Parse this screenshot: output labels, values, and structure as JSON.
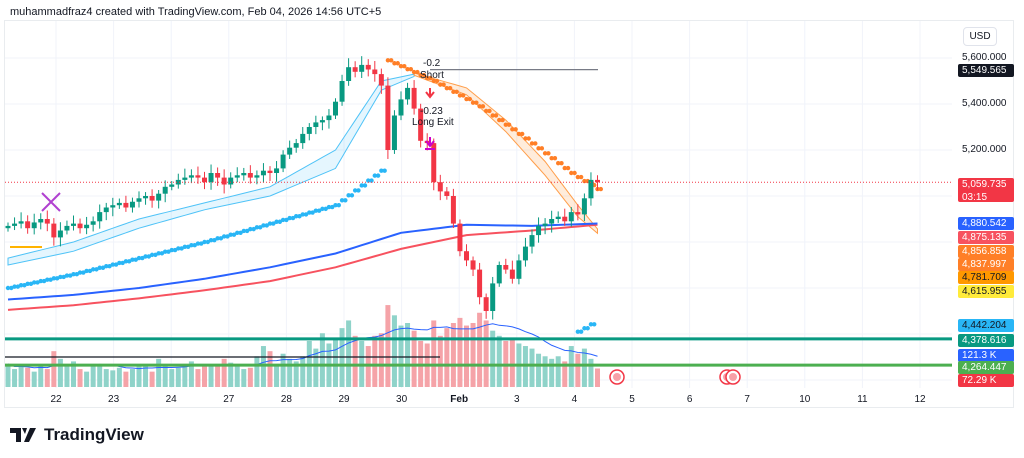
{
  "header": {
    "attribution": "muhammadfraz4 created with TradingView.com, Feb 04, 2026 14:56 UTC+5"
  },
  "footer": {
    "brand": "TradingView"
  },
  "colors": {
    "up": "#089981",
    "down": "#f23645",
    "vol_up": "#8fd3c9",
    "vol_down": "#f5a3a8",
    "ma_blue": "#2962ff",
    "ma_red": "#f7525f",
    "psar_blue": "#29b6f6",
    "psar_orange": "#ff7f27",
    "band_cyan": "#4fc3f7",
    "band_orange": "#ff9e4a",
    "signal_magenta": "#cc00cc"
  },
  "annotations": {
    "short_value": "-0.2",
    "short_label": "Short",
    "exit_value": "-0.23",
    "exit_label": "Long Exit"
  },
  "axis": {
    "currency": "USD",
    "ticks": [
      "5,600.000",
      "5,400.000",
      "5,200.000"
    ],
    "time_remaining": "03:15"
  },
  "price_tags": [
    {
      "label": "5,549.565",
      "bg": "#131722",
      "fg": "#ffffff"
    },
    {
      "label": "5,059.735",
      "bg": "#f23645",
      "fg": "#ffffff"
    },
    {
      "label": "4,880.542",
      "bg": "#2962ff",
      "fg": "#ffffff"
    },
    {
      "label": "4,875.135",
      "bg": "#f7525f",
      "fg": "#ffffff"
    },
    {
      "label": "4,856.858",
      "bg": "#ff7f27",
      "fg": "#ffffff"
    },
    {
      "label": "4,837.997",
      "bg": "#ff7f27",
      "fg": "#ffffff"
    },
    {
      "label": "4,781.709",
      "bg": "#ff9800",
      "fg": "#131722"
    },
    {
      "label": "4,615.955",
      "bg": "#ffeb3b",
      "fg": "#131722"
    },
    {
      "label": "4,442.204",
      "bg": "#29b6f6",
      "fg": "#131722"
    },
    {
      "label": "4,378.616",
      "bg": "#089981",
      "fg": "#ffffff"
    },
    {
      "label": "121.3 K",
      "bg": "#2962ff",
      "fg": "#ffffff"
    },
    {
      "label": "4,264.447",
      "bg": "#4caf50",
      "fg": "#ffffff"
    },
    {
      "label": "72.29 K",
      "bg": "#f23645",
      "fg": "#ffffff"
    }
  ],
  "chart_data": {
    "type": "candlestick",
    "title": "",
    "x_tick_labels": [
      "22",
      "23",
      "24",
      "27",
      "28",
      "29",
      "30",
      "Feb",
      "3",
      "4",
      "5",
      "6",
      "7",
      "10",
      "11",
      "12"
    ],
    "y_ticks": [
      5600,
      5400,
      5200
    ],
    "last_price": 5059.735,
    "closes": [
      4870,
      4880,
      4890,
      4860,
      4885,
      4900,
      4880,
      4820,
      4850,
      4870,
      4880,
      4860,
      4875,
      4890,
      4930,
      4950,
      4960,
      4970,
      4950,
      4975,
      4990,
      5000,
      4980,
      5010,
      5040,
      5050,
      5070,
      5080,
      5090,
      5080,
      5060,
      5100,
      5080,
      5050,
      5080,
      5090,
      5100,
      5080,
      5090,
      5110,
      5100,
      5120,
      5180,
      5210,
      5230,
      5270,
      5300,
      5320,
      5330,
      5350,
      5410,
      5500,
      5560,
      5540,
      5570,
      5550,
      5530,
      5480,
      5200,
      5350,
      5420,
      5470,
      5380,
      5240,
      5230,
      5060,
      5020,
      5000,
      4880,
      4760,
      4720,
      4680,
      4560,
      4500,
      4620,
      4700,
      4680,
      4640,
      4720,
      4780,
      4830,
      4870,
      4880,
      4900,
      4910,
      4890,
      4930,
      4920,
      4990,
      5070,
      5059.735
    ],
    "volume_k": [
      90,
      70,
      80,
      75,
      60,
      85,
      70,
      140,
      110,
      80,
      100,
      70,
      60,
      90,
      80,
      70,
      65,
      75,
      60,
      70,
      80,
      90,
      60,
      110,
      80,
      70,
      75,
      90,
      100,
      70,
      80,
      85,
      90,
      110,
      95,
      80,
      70,
      75,
      120,
      160,
      140,
      90,
      130,
      110,
      100,
      120,
      180,
      150,
      210,
      170,
      190,
      230,
      260,
      200,
      180,
      160,
      200,
      210,
      320,
      280,
      240,
      250,
      220,
      180,
      170,
      260,
      200,
      230,
      250,
      270,
      240,
      250,
      290,
      260,
      220,
      200,
      180,
      190,
      170,
      160,
      150,
      130,
      120,
      110,
      120,
      100,
      160,
      130,
      150,
      110,
      72.29
    ],
    "indicators": {
      "ma_blue": {
        "at": [
          0,
          10,
          20,
          30,
          40,
          50,
          60,
          70,
          80,
          90
        ],
        "values": [
          4550,
          4570,
          4600,
          4640,
          4690,
          4750,
          4840,
          4875,
          4870,
          4880.542
        ]
      },
      "ma_red": {
        "at": [
          0,
          10,
          20,
          30,
          40,
          50,
          60,
          70,
          80,
          90
        ],
        "values": [
          4505,
          4525,
          4555,
          4590,
          4630,
          4690,
          4770,
          4830,
          4850,
          4875.135
        ]
      },
      "psar_blue": {
        "at": [
          0,
          10,
          20,
          30,
          40,
          50,
          57
        ],
        "values": [
          4600,
          4660,
          4730,
          4800,
          4880,
          4960,
          5110
        ]
      },
      "psar_blue_recent": {
        "at": [
          87,
          88,
          89
        ],
        "values": [
          4410,
          4425,
          4442.204
        ]
      },
      "psar_orange": {
        "at": [
          58,
          65,
          72,
          79,
          86,
          90
        ],
        "values": [
          5590,
          5500,
          5390,
          5250,
          5100,
          5030
        ]
      },
      "band_cyan_upper": {
        "at": [
          0,
          10,
          20,
          30,
          40,
          50,
          57,
          62
        ],
        "values": [
          4730,
          4800,
          4900,
          4970,
          5040,
          5200,
          5500,
          5530
        ]
      },
      "band_cyan_lower": {
        "at": [
          0,
          10,
          20,
          30,
          40,
          50,
          57,
          62
        ],
        "values": [
          4700,
          4760,
          4860,
          4940,
          5000,
          5120,
          5460,
          5520
        ]
      },
      "band_orange_upper": {
        "at": [
          62,
          70,
          76,
          82,
          87,
          90
        ],
        "values": [
          5535,
          5470,
          5330,
          5150,
          4960,
          4856.858
        ]
      },
      "band_orange_lower": {
        "at": [
          62,
          70,
          76,
          82,
          87,
          90
        ],
        "values": [
          5525,
          5440,
          5280,
          5090,
          4910,
          4837.997
        ]
      },
      "levels": [
        {
          "price": 4378.616,
          "color": "#089981"
        },
        {
          "price": 4264.447,
          "color": "#4caf50"
        },
        {
          "price": 4300,
          "color": "#131722"
        },
        {
          "price": 5549.565,
          "color": "#787b86"
        }
      ]
    }
  }
}
